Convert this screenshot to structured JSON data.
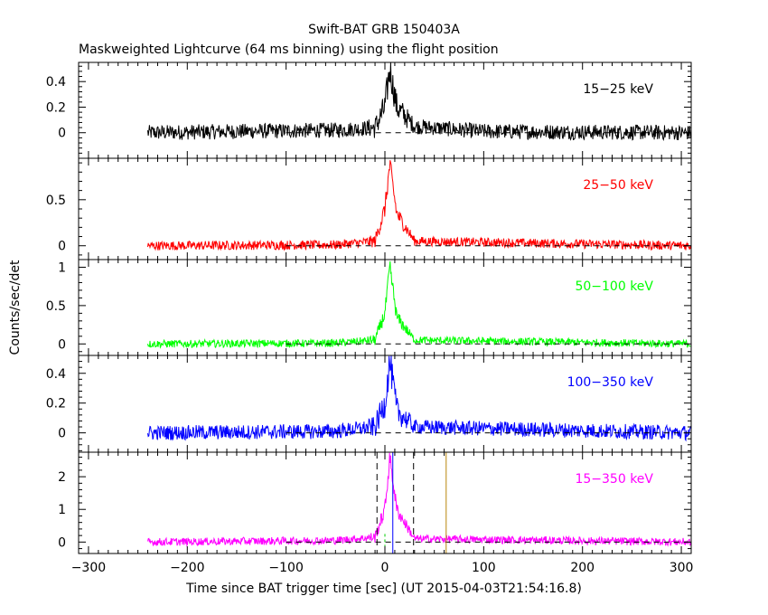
{
  "chart_data": {
    "type": "line",
    "title": "Swift-BAT GRB 150403A",
    "subtitle": "Maskweighted Lightcurve (64 ms binning) using the flight position",
    "xlabel": "Time since BAT trigger time [sec] (UT 2015-04-03T21:54:16.8)",
    "ylabel": "Counts/sec/det",
    "xlim": [
      -310,
      310
    ],
    "x_ticks": [
      -300,
      -200,
      -100,
      0,
      100,
      200,
      300
    ],
    "data_start": -240,
    "data_end": 310,
    "peak_time": 5,
    "grid": false,
    "panels": [
      {
        "name": "15−25 keV",
        "color": "#000000",
        "ylim": [
          -0.2,
          0.55
        ],
        "y_ticks": [
          0,
          0.2,
          0.4
        ],
        "y_tick_labels": [
          "0",
          "0.2",
          "0.4"
        ],
        "baseline_noise": 0.06,
        "series": [
          {
            "x": -240,
            "y": 0.0
          },
          {
            "x": -150,
            "y": 0.01
          },
          {
            "x": -50,
            "y": 0.02
          },
          {
            "x": -10,
            "y": 0.04
          },
          {
            "x": 0,
            "y": 0.2
          },
          {
            "x": 5,
            "y": 0.5
          },
          {
            "x": 12,
            "y": 0.2
          },
          {
            "x": 30,
            "y": 0.05
          },
          {
            "x": 100,
            "y": 0.01
          },
          {
            "x": 310,
            "y": 0.0
          }
        ]
      },
      {
        "name": "25−50 keV",
        "color": "#ff0000",
        "ylim": [
          -0.15,
          0.95
        ],
        "y_ticks": [
          0,
          0.5
        ],
        "y_tick_labels": [
          "0",
          "0.5"
        ],
        "baseline_noise": 0.05,
        "series": [
          {
            "x": -240,
            "y": 0.0
          },
          {
            "x": -50,
            "y": 0.01
          },
          {
            "x": -10,
            "y": 0.05
          },
          {
            "x": 0,
            "y": 0.4
          },
          {
            "x": 5,
            "y": 0.88
          },
          {
            "x": 12,
            "y": 0.35
          },
          {
            "x": 30,
            "y": 0.05
          },
          {
            "x": 310,
            "y": 0.0
          }
        ]
      },
      {
        "name": "50−100 keV",
        "color": "#00ff00",
        "ylim": [
          -0.15,
          1.1
        ],
        "y_ticks": [
          0,
          0.5,
          1
        ],
        "y_tick_labels": [
          "0",
          "0.5",
          "1"
        ],
        "baseline_noise": 0.05,
        "series": [
          {
            "x": -240,
            "y": 0.0
          },
          {
            "x": -50,
            "y": 0.01
          },
          {
            "x": -10,
            "y": 0.05
          },
          {
            "x": 0,
            "y": 0.4
          },
          {
            "x": 5,
            "y": 1.0
          },
          {
            "x": 12,
            "y": 0.35
          },
          {
            "x": 30,
            "y": 0.05
          },
          {
            "x": 310,
            "y": 0.0
          }
        ]
      },
      {
        "name": "100−350 keV",
        "color": "#0000ff",
        "ylim": [
          -0.13,
          0.52
        ],
        "y_ticks": [
          0,
          0.2,
          0.4
        ],
        "y_tick_labels": [
          "0",
          "0.2",
          "0.4"
        ],
        "baseline_noise": 0.05,
        "series": [
          {
            "x": -240,
            "y": 0.0
          },
          {
            "x": -50,
            "y": 0.01
          },
          {
            "x": -10,
            "y": 0.04
          },
          {
            "x": 0,
            "y": 0.2
          },
          {
            "x": 5,
            "y": 0.48
          },
          {
            "x": 12,
            "y": 0.15
          },
          {
            "x": 30,
            "y": 0.04
          },
          {
            "x": 310,
            "y": 0.0
          }
        ]
      },
      {
        "name": "15−350 keV",
        "color": "#ff00ff",
        "ylim": [
          -0.35,
          2.75
        ],
        "y_ticks": [
          0,
          1,
          2
        ],
        "y_tick_labels": [
          "0",
          "1",
          "2"
        ],
        "baseline_noise": 0.12,
        "series": [
          {
            "x": -240,
            "y": 0.0
          },
          {
            "x": -50,
            "y": 0.05
          },
          {
            "x": -10,
            "y": 0.15
          },
          {
            "x": 0,
            "y": 1.0
          },
          {
            "x": 5,
            "y": 2.6
          },
          {
            "x": 12,
            "y": 1.0
          },
          {
            "x": 30,
            "y": 0.1
          },
          {
            "x": 310,
            "y": 0.0
          }
        ],
        "vertical_markers": [
          {
            "x": -8,
            "style": "dashed",
            "color": "#000000"
          },
          {
            "x": 8,
            "style": "solid",
            "color": "#0000ff"
          },
          {
            "x": 29,
            "style": "dashed",
            "color": "#000000"
          },
          {
            "x": 62,
            "style": "solid",
            "color": "#b8860b"
          },
          {
            "x": 0,
            "style": "dashed-short",
            "color": "#00cc00"
          }
        ]
      }
    ]
  }
}
